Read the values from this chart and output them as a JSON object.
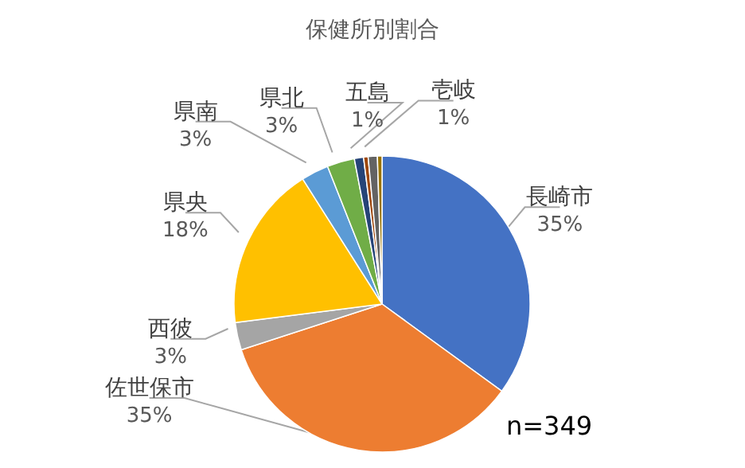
{
  "chart_data": {
    "type": "pie",
    "title": "保健所別割合",
    "categories": [
      "長崎市",
      "佐世保市",
      "西彼",
      "県央",
      "県南",
      "県北",
      "五島",
      null,
      "壱岐",
      null
    ],
    "values": [
      35,
      35,
      3,
      18,
      3,
      3,
      1,
      0.5,
      1,
      0.5
    ],
    "colors": [
      "#4472c4",
      "#ed7d31",
      "#a5a5a5",
      "#ffc000",
      "#5b9bd5",
      "#70ad47",
      "#264478",
      "#9e480e",
      "#636363",
      "#997300"
    ],
    "value_labels": [
      "35%",
      "35%",
      "3%",
      "18%",
      "3%",
      "3%",
      "1%",
      null,
      "1%",
      null
    ],
    "annotations": [
      "n=349"
    ]
  }
}
